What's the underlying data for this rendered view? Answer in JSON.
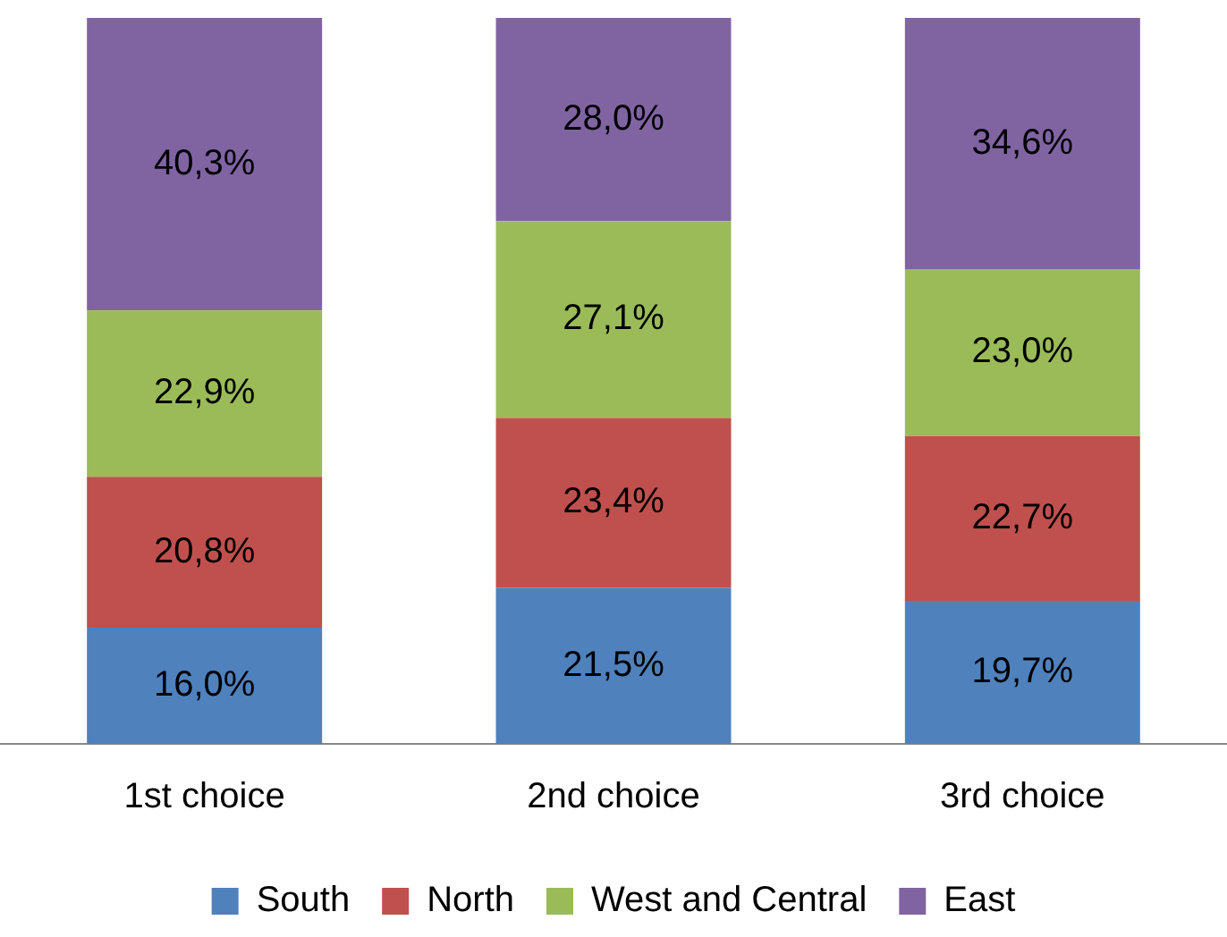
{
  "chart_data": {
    "type": "bar",
    "stacked": true,
    "categories": [
      "1st choice",
      "2nd choice",
      "3rd choice"
    ],
    "legend": "bottom",
    "grid": false,
    "tick_labels": "x",
    "series": [
      {
        "name": "South",
        "color": "#4f81bd",
        "values": [
          16.0,
          21.5,
          19.7
        ],
        "value_labels": [
          "16,0%",
          "21,5%",
          "19,7%"
        ]
      },
      {
        "name": "North",
        "color": "#c0504d",
        "values": [
          20.8,
          23.4,
          22.7
        ],
        "value_labels": [
          "20,8%",
          "23,4%",
          "22,7%"
        ]
      },
      {
        "name": "West and Central",
        "color": "#9bbb59",
        "values": [
          22.9,
          27.1,
          23.0
        ],
        "value_labels": [
          "22,9%",
          "27,1%",
          "23,0%"
        ]
      },
      {
        "name": "East",
        "color": "#8064a2",
        "values": [
          40.3,
          28.0,
          34.6
        ],
        "value_labels": [
          "40,3%",
          "28,0%",
          "34,6%"
        ]
      }
    ]
  }
}
